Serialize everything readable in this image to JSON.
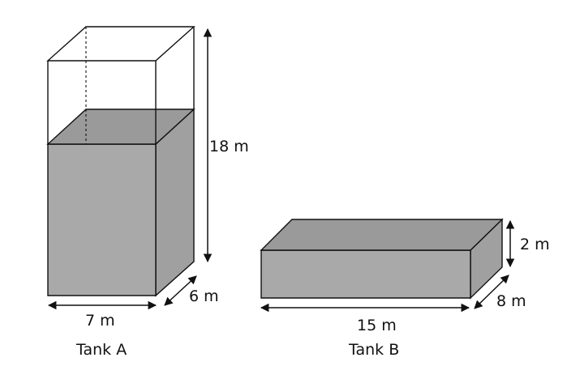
{
  "colors": {
    "water_front": "#a9a9a9",
    "water_side": "#a0a0a0",
    "water_top": "#9a9a9a",
    "lines": "#111111"
  },
  "tank_a": {
    "name": "Tank A",
    "width_label": "7 m",
    "depth_label": "6 m",
    "height_label": "18 m"
  },
  "tank_b": {
    "name": "Tank B",
    "length_label": "15 m",
    "depth_label": "8 m",
    "height_label": "2 m"
  }
}
